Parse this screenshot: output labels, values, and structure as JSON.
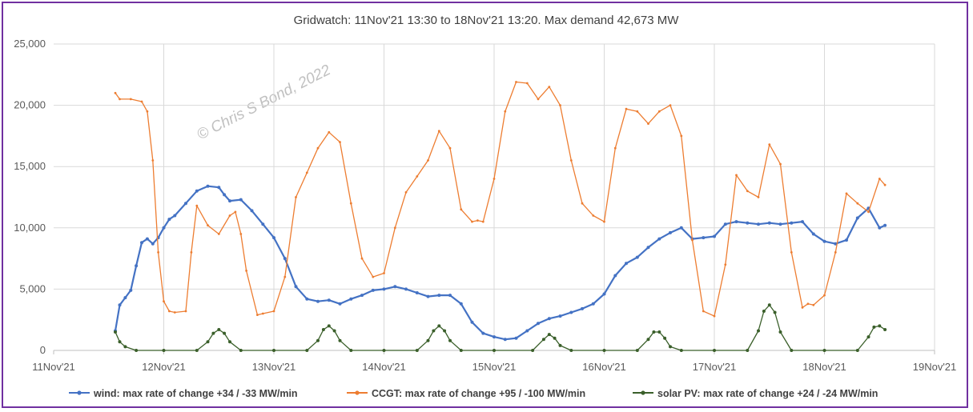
{
  "chart_data": {
    "type": "line",
    "title": "Gridwatch:  11Nov'21 13:30  to 18Nov'21 13:20.   Max demand 42,673 MW",
    "xlabel": "",
    "ylabel": "",
    "ylim": [
      0,
      25000
    ],
    "yticks": [
      "0",
      "5,000",
      "10,000",
      "15,000",
      "20,000",
      "25,000"
    ],
    "xticks": [
      "11Nov'21",
      "12Nov'21",
      "13Nov'21",
      "14Nov'21",
      "15Nov'21",
      "16Nov'21",
      "17Nov'21",
      "18Nov'21",
      "19Nov'21"
    ],
    "xlim_days": [
      0,
      8
    ],
    "grid": true,
    "legend": "bottom",
    "watermark": "© Chris S Bond, 2022",
    "series": [
      {
        "name": "wind: max rate of change +34 / -33 MW/min",
        "color": "#4472c4",
        "x": [
          0.56,
          0.6,
          0.65,
          0.7,
          0.75,
          0.8,
          0.85,
          0.9,
          0.95,
          1.0,
          1.05,
          1.1,
          1.2,
          1.3,
          1.4,
          1.5,
          1.55,
          1.6,
          1.7,
          1.8,
          1.9,
          2.0,
          2.1,
          2.2,
          2.3,
          2.4,
          2.5,
          2.6,
          2.7,
          2.8,
          2.9,
          3.0,
          3.1,
          3.2,
          3.3,
          3.4,
          3.5,
          3.6,
          3.7,
          3.8,
          3.9,
          4.0,
          4.1,
          4.2,
          4.3,
          4.4,
          4.5,
          4.6,
          4.7,
          4.8,
          4.9,
          5.0,
          5.1,
          5.2,
          5.3,
          5.4,
          5.5,
          5.6,
          5.7,
          5.8,
          5.9,
          6.0,
          6.1,
          6.2,
          6.3,
          6.4,
          6.5,
          6.6,
          6.7,
          6.8,
          6.9,
          7.0,
          7.1,
          7.2,
          7.3,
          7.4,
          7.5,
          7.55
        ],
        "y": [
          1600,
          3700,
          4300,
          4900,
          6900,
          8800,
          9100,
          8700,
          9200,
          10000,
          10700,
          11000,
          12000,
          13000,
          13400,
          13300,
          12700,
          12200,
          12300,
          11400,
          10300,
          9200,
          7500,
          5200,
          4200,
          4000,
          4100,
          3800,
          4200,
          4500,
          4900,
          5000,
          5200,
          5000,
          4700,
          4400,
          4500,
          4500,
          3800,
          2300,
          1400,
          1100,
          900,
          1000,
          1600,
          2200,
          2600,
          2800,
          3100,
          3400,
          3800,
          4600,
          6100,
          7100,
          7600,
          8400,
          9100,
          9600,
          10000,
          9100,
          9200,
          9300,
          10300,
          10500,
          10400,
          10300,
          10400,
          10300,
          10400,
          10500,
          9500,
          8900,
          8700,
          9000,
          10800,
          11600,
          10000,
          10200
        ]
      },
      {
        "name": "CCGT: max rate of change +95 / -100 MW/min",
        "color": "#ed7d31",
        "x": [
          0.56,
          0.6,
          0.7,
          0.8,
          0.85,
          0.9,
          0.95,
          1.0,
          1.05,
          1.1,
          1.2,
          1.25,
          1.3,
          1.4,
          1.5,
          1.6,
          1.65,
          1.7,
          1.75,
          1.85,
          1.9,
          2.0,
          2.1,
          2.2,
          2.3,
          2.4,
          2.5,
          2.6,
          2.7,
          2.8,
          2.9,
          3.0,
          3.1,
          3.2,
          3.3,
          3.4,
          3.5,
          3.6,
          3.7,
          3.8,
          3.85,
          3.9,
          4.0,
          4.1,
          4.2,
          4.3,
          4.4,
          4.5,
          4.6,
          4.7,
          4.8,
          4.9,
          5.0,
          5.1,
          5.2,
          5.3,
          5.4,
          5.5,
          5.6,
          5.7,
          5.8,
          5.9,
          6.0,
          6.1,
          6.2,
          6.3,
          6.4,
          6.5,
          6.6,
          6.7,
          6.8,
          6.85,
          6.9,
          7.0,
          7.1,
          7.2,
          7.3,
          7.4,
          7.5,
          7.55
        ],
        "y": [
          21000,
          20500,
          20500,
          20300,
          19500,
          15500,
          8000,
          4000,
          3200,
          3100,
          3200,
          8000,
          11800,
          10200,
          9500,
          11000,
          11300,
          9500,
          6500,
          2900,
          3000,
          3200,
          6000,
          12500,
          14500,
          16500,
          17800,
          17000,
          12000,
          7500,
          6000,
          6300,
          10000,
          12900,
          14200,
          15500,
          17900,
          16500,
          11500,
          10500,
          10600,
          10500,
          14000,
          19500,
          21900,
          21800,
          20500,
          21500,
          20000,
          15500,
          12000,
          11000,
          10500,
          16500,
          19700,
          19500,
          18500,
          19500,
          20000,
          17500,
          9000,
          3200,
          2800,
          7000,
          14300,
          13000,
          12500,
          16800,
          15200,
          8000,
          3500,
          3800,
          3700,
          4500,
          8000,
          12800,
          12000,
          11300,
          14000,
          13500
        ]
      },
      {
        "name": "solar PV: max rate of change +24 / -24 MW/min",
        "color": "#3a5f2a",
        "x": [
          0.56,
          0.6,
          0.65,
          0.75,
          1.0,
          1.3,
          1.4,
          1.45,
          1.5,
          1.55,
          1.6,
          1.7,
          2.0,
          2.3,
          2.4,
          2.45,
          2.5,
          2.55,
          2.6,
          2.7,
          3.0,
          3.3,
          3.4,
          3.45,
          3.5,
          3.55,
          3.6,
          3.7,
          4.0,
          4.35,
          4.45,
          4.5,
          4.55,
          4.6,
          4.7,
          5.0,
          5.3,
          5.4,
          5.45,
          5.5,
          5.55,
          5.6,
          5.7,
          6.0,
          6.3,
          6.4,
          6.45,
          6.5,
          6.55,
          6.6,
          6.7,
          7.0,
          7.3,
          7.4,
          7.45,
          7.5,
          7.55
        ],
        "y": [
          1500,
          700,
          300,
          0,
          0,
          0,
          700,
          1400,
          1700,
          1400,
          700,
          0,
          0,
          0,
          800,
          1700,
          2000,
          1600,
          800,
          0,
          0,
          0,
          800,
          1600,
          2000,
          1600,
          800,
          0,
          0,
          0,
          900,
          1300,
          1000,
          400,
          0,
          0,
          0,
          900,
          1500,
          1500,
          1000,
          300,
          0,
          0,
          0,
          1600,
          3200,
          3700,
          3100,
          1500,
          0,
          0,
          0,
          1100,
          1900,
          2000,
          1700
        ]
      }
    ]
  }
}
